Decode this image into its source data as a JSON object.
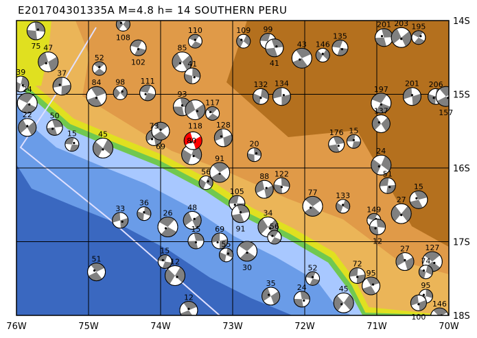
{
  "title": "E201704301335A M=4.8 h= 14 SOUTHERN PERU",
  "map": {
    "lon_range": [
      -76,
      -70
    ],
    "lat_range": [
      -18,
      -14
    ],
    "lon_ticks": [
      {
        "v": -76,
        "label": "76W"
      },
      {
        "v": -75,
        "label": "75W"
      },
      {
        "v": -74,
        "label": "74W"
      },
      {
        "v": -73,
        "label": "73W"
      },
      {
        "v": -72,
        "label": "72W"
      },
      {
        "v": -71,
        "label": "71W"
      },
      {
        "v": -70,
        "label": "70W"
      }
    ],
    "lat_ticks": [
      {
        "v": -14,
        "label": "14S"
      },
      {
        "v": -15,
        "label": "15S"
      },
      {
        "v": -16,
        "label": "16S"
      },
      {
        "v": -17,
        "label": "17S"
      },
      {
        "v": -18,
        "label": "18S"
      }
    ],
    "colors": {
      "land_high": "#b4701e",
      "land_mid": "#e09a48",
      "land_low": "#f0c060",
      "coast_yellow": "#e0e020",
      "coast_green": "#70c850",
      "ocean_shallow": "#a8c8ff",
      "ocean_mid": "#6a9ce8",
      "ocean_deep": "#3a68c0",
      "compression": "#808080",
      "highlight": "#ff0000",
      "trench_line": "#e0e0ff"
    },
    "main_event": {
      "lon": -73.55,
      "lat": -15.63
    },
    "events": [
      {
        "lon": -74.52,
        "lat": -14.05,
        "label": "108"
      },
      {
        "lon": -74.31,
        "lat": -14.37,
        "label": "102"
      },
      {
        "lon": -75.73,
        "lat": -14.14,
        "label": "75"
      },
      {
        "lon": -75.56,
        "lat": -14.56,
        "label": "47"
      },
      {
        "lon": -74.85,
        "lat": -14.65,
        "label": "52"
      },
      {
        "lon": -75.94,
        "lat": -14.86,
        "label": "39"
      },
      {
        "lon": -75.37,
        "lat": -14.89,
        "label": "37"
      },
      {
        "lon": -74.89,
        "lat": -15.03,
        "label": "84"
      },
      {
        "lon": -74.56,
        "lat": -14.98,
        "label": "98"
      },
      {
        "lon": -74.18,
        "lat": -14.98,
        "label": "111"
      },
      {
        "lon": -73.7,
        "lat": -15.17,
        "label": "93"
      },
      {
        "lon": -73.52,
        "lat": -15.21,
        "label": "118"
      },
      {
        "lon": -73.28,
        "lat": -15.26,
        "label": "117"
      },
      {
        "lon": -72.61,
        "lat": -15.03,
        "label": "132"
      },
      {
        "lon": -72.32,
        "lat": -15.03,
        "label": "134"
      },
      {
        "lon": -72.04,
        "lat": -14.51,
        "label": "43"
      },
      {
        "lon": -71.75,
        "lat": -14.47,
        "label": "146"
      },
      {
        "lon": -71.51,
        "lat": -14.37,
        "label": "135"
      },
      {
        "lon": -70.9,
        "lat": -14.23,
        "label": "201"
      },
      {
        "lon": -70.66,
        "lat": -14.23,
        "label": "203"
      },
      {
        "lon": -70.42,
        "lat": -14.23,
        "label": "195"
      },
      {
        "lon": -70.18,
        "lat": -15.03,
        "label": "206"
      },
      {
        "lon": -70.51,
        "lat": -15.03,
        "label": "201"
      },
      {
        "lon": -70.04,
        "lat": -15.03,
        "label": "157"
      },
      {
        "lon": -72.85,
        "lat": -14.28,
        "label": "109"
      },
      {
        "lon": -72.51,
        "lat": -14.28,
        "label": "99"
      },
      {
        "lon": -72.42,
        "lat": -14.37,
        "label": "41"
      },
      {
        "lon": -73.7,
        "lat": -14.56,
        "label": "85"
      },
      {
        "lon": -73.52,
        "lat": -14.28,
        "label": "110"
      },
      {
        "lon": -73.56,
        "lat": -14.75,
        "label": "41"
      },
      {
        "lon": -73.13,
        "lat": -15.59,
        "label": "128"
      },
      {
        "lon": -73.18,
        "lat": -16.06,
        "label": "91"
      },
      {
        "lon": -73.37,
        "lat": -16.2,
        "label": "56"
      },
      {
        "lon": -72.94,
        "lat": -16.48,
        "label": "105"
      },
      {
        "lon": -72.89,
        "lat": -16.62,
        "label": "91"
      },
      {
        "lon": -72.51,
        "lat": -16.8,
        "label": "34"
      },
      {
        "lon": -72.42,
        "lat": -16.94,
        "label": "56"
      },
      {
        "lon": -72.32,
        "lat": -16.24,
        "label": "122"
      },
      {
        "lon": -72.56,
        "lat": -16.29,
        "label": "88"
      },
      {
        "lon": -71.89,
        "lat": -16.52,
        "label": "77"
      },
      {
        "lon": -71.47,
        "lat": -16.52,
        "label": "133"
      },
      {
        "lon": -70.85,
        "lat": -16.24,
        "label": "51"
      },
      {
        "lon": -70.42,
        "lat": -16.43,
        "label": "15"
      },
      {
        "lon": -70.66,
        "lat": -16.62,
        "label": "27"
      },
      {
        "lon": -71.04,
        "lat": -16.71,
        "label": "149"
      },
      {
        "lon": -70.99,
        "lat": -16.8,
        "label": "12"
      },
      {
        "lon": -70.61,
        "lat": -17.27,
        "label": "27"
      },
      {
        "lon": -70.23,
        "lat": -17.27,
        "label": "127"
      },
      {
        "lon": -70.32,
        "lat": -17.41,
        "label": "74"
      },
      {
        "lon": -71.27,
        "lat": -17.46,
        "label": "72"
      },
      {
        "lon": -71.08,
        "lat": -17.6,
        "label": "95"
      },
      {
        "lon": -71.46,
        "lat": -17.83,
        "label": "45"
      },
      {
        "lon": -71.89,
        "lat": -17.5,
        "label": "52"
      },
      {
        "lon": -72.04,
        "lat": -17.78,
        "label": "24"
      },
      {
        "lon": -72.47,
        "lat": -17.74,
        "label": "35"
      },
      {
        "lon": -72.8,
        "lat": -17.13,
        "label": "30"
      },
      {
        "lon": -73.09,
        "lat": -17.18,
        "label": "55"
      },
      {
        "lon": -73.18,
        "lat": -16.99,
        "label": "69"
      },
      {
        "lon": -73.61,
        "lat": -17.93,
        "label": "12"
      },
      {
        "lon": -73.8,
        "lat": -17.46,
        "label": "12"
      },
      {
        "lon": -73.94,
        "lat": -17.27,
        "label": "15"
      },
      {
        "lon": -73.51,
        "lat": -16.99,
        "label": "15"
      },
      {
        "lon": -73.56,
        "lat": -16.71,
        "label": "48"
      },
      {
        "lon": -73.9,
        "lat": -16.8,
        "label": "26"
      },
      {
        "lon": -74.23,
        "lat": -16.62,
        "label": "36"
      },
      {
        "lon": -74.56,
        "lat": -16.71,
        "label": "33"
      },
      {
        "lon": -74.89,
        "lat": -17.41,
        "label": "51"
      },
      {
        "lon": -74.8,
        "lat": -15.73,
        "label": "45"
      },
      {
        "lon": -75.23,
        "lat": -15.68,
        "label": "15"
      },
      {
        "lon": -75.47,
        "lat": -15.45,
        "label": "50"
      },
      {
        "lon": -75.85,
        "lat": -15.45,
        "label": "22"
      },
      {
        "lon": -75.85,
        "lat": -15.12,
        "label": "24"
      },
      {
        "lon": -70.32,
        "lat": -17.74,
        "label": "95"
      },
      {
        "lon": -70.42,
        "lat": -17.83,
        "label": "100"
      },
      {
        "lon": -70.13,
        "lat": -18.02,
        "label": "146"
      },
      {
        "lon": -70.94,
        "lat": -15.96,
        "label": "24"
      },
      {
        "lon": -71.32,
        "lat": -15.64,
        "label": "15"
      },
      {
        "lon": -71.56,
        "lat": -15.68,
        "label": "176"
      },
      {
        "lon": -70.94,
        "lat": -15.4,
        "label": "137"
      },
      {
        "lon": -70.94,
        "lat": -15.12,
        "label": "197"
      },
      {
        "lon": -72.7,
        "lat": -15.82,
        "label": "20"
      },
      {
        "lon": -74.09,
        "lat": -15.59,
        "label": "73"
      },
      {
        "lon": -74.0,
        "lat": -15.5,
        "label": "69"
      },
      {
        "lon": -73.57,
        "lat": -15.82,
        "label": "80"
      }
    ]
  }
}
